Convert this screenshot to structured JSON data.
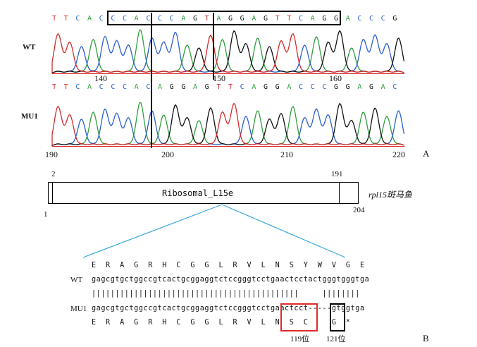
{
  "panel_a": {
    "wt_label": "WT",
    "mu1_label": "MU1",
    "wt_bases": [
      "T",
      "T",
      "C",
      "A",
      "C",
      "C",
      "C",
      "A",
      "C",
      "C",
      "C",
      "A",
      "G",
      "T",
      "A",
      "G",
      "G",
      "A",
      "G",
      "T",
      "T",
      "C",
      "A",
      "G",
      "G",
      "A",
      "C",
      "C",
      "C",
      "G"
    ],
    "mu1_bases": [
      "T",
      "T",
      "C",
      "A",
      "C",
      "C",
      "C",
      "A",
      "C",
      "A",
      "G",
      "G",
      "A",
      "G",
      "T",
      "T",
      "C",
      "A",
      "G",
      "G",
      "A",
      "C",
      "C",
      "C",
      "G",
      "G",
      "A",
      "G",
      "A",
      "C"
    ],
    "wt_ticks": [
      "140",
      "150",
      "160"
    ],
    "mu1_ticks": [
      "190",
      "200",
      "210",
      "220"
    ],
    "panel_letter": "A",
    "base_colors": {
      "A": "#2e9e3f",
      "C": "#2a5fd1",
      "G": "#111111",
      "T": "#d42a2a"
    }
  },
  "panel_b": {
    "domain_start": "2",
    "domain_end": "191",
    "domain_name": "Ribosomal_L15e",
    "protein_start": "1",
    "protein_end": "204",
    "gene_label": "rpl15斑马鱼",
    "wt_aa": "E  R  A  G  R  H  C  G  G  L  R  V  L  N  S  Y  W  V  G  E",
    "wt_label": "WT",
    "wt_seq": "gagcgtgctggccgtcactgcggaggtctccgggtcctgaactcctactgggtgggtga",
    "match_bars": "||||||||||||||||||||||||||||||||||||||||||||     ||||||||",
    "mu1_label": "MU1",
    "mu1_seq_a": "gagcgtgctggccgtcactgcggaggtctccgggtcctgaactcct",
    "mu1_seq_b": "-----gtggtga",
    "mu1_aa_a": "E  R  A  G  R  H  C  G  G  L  R  V  L  N  S  ",
    "mu1_aa_b": "C     G  *",
    "note_119": "119位",
    "note_121": "121位",
    "panel_letter": "B"
  }
}
